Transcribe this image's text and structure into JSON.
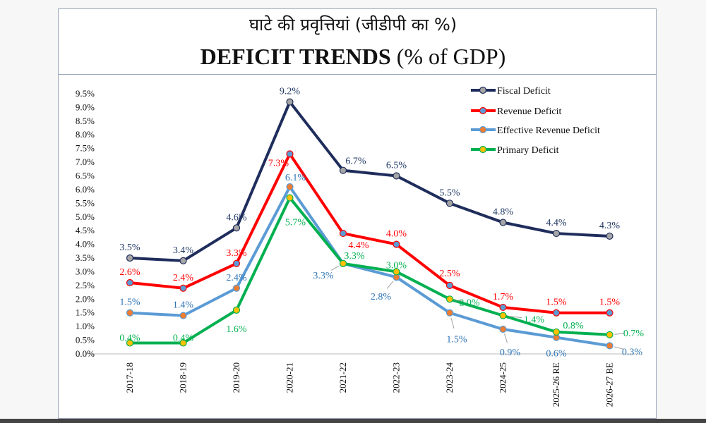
{
  "title_hindi": "घाटे की प्रवृत्तियां (जीडीपी का %)",
  "title_english_bold": "DEFICIT TRENDS",
  "title_english_rest": " (% of GDP)",
  "chart_data": {
    "type": "line",
    "title": "DEFICIT TRENDS (% of GDP)",
    "xlabel": "",
    "ylabel": "",
    "ylim": [
      0,
      9.5
    ],
    "y_ticks": [
      "0.0%",
      "0.5%",
      "1.0%",
      "1.5%",
      "2.0%",
      "2.5%",
      "3.0%",
      "3.5%",
      "4.0%",
      "4.5%",
      "5.0%",
      "5.5%",
      "6.0%",
      "6.5%",
      "7.0%",
      "7.5%",
      "8.0%",
      "8.5%",
      "9.0%",
      "9.5%"
    ],
    "grid": false,
    "legend_position": "top-right",
    "categories": [
      "2017-18",
      "2018-19",
      "2019-20",
      "2020-21",
      "2021-22",
      "2022-23",
      "2023-24",
      "2024-25",
      "2025-26 RE",
      "2026-27 BE"
    ],
    "series": [
      {
        "name": "Fiscal Deficit",
        "values": [
          3.5,
          3.4,
          4.6,
          9.2,
          6.7,
          6.5,
          5.5,
          4.8,
          4.4,
          4.3
        ],
        "line_color": "#1f2d5c",
        "marker_color": "#a5a5a5",
        "label_color": "#1f3864"
      },
      {
        "name": "Revenue Deficit",
        "values": [
          2.6,
          2.4,
          3.3,
          7.3,
          4.4,
          4.0,
          2.5,
          1.7,
          1.5,
          1.5
        ],
        "line_color": "#ff0000",
        "marker_color": "#5b9bd5",
        "label_color": "#ff0000"
      },
      {
        "name": "Effective Revenue Deficit",
        "values": [
          1.5,
          1.4,
          2.4,
          6.1,
          3.3,
          2.8,
          1.5,
          0.9,
          0.6,
          0.3
        ],
        "line_color": "#5b9bd5",
        "marker_color": "#ed7d31",
        "label_color": "#2e75b6"
      },
      {
        "name": "Primary Deficit",
        "values": [
          0.4,
          0.4,
          1.6,
          5.7,
          3.3,
          3.0,
          2.0,
          1.4,
          0.8,
          0.7
        ],
        "line_color": "#00b050",
        "marker_color": "#ffc000",
        "label_color": "#00b050"
      }
    ]
  }
}
